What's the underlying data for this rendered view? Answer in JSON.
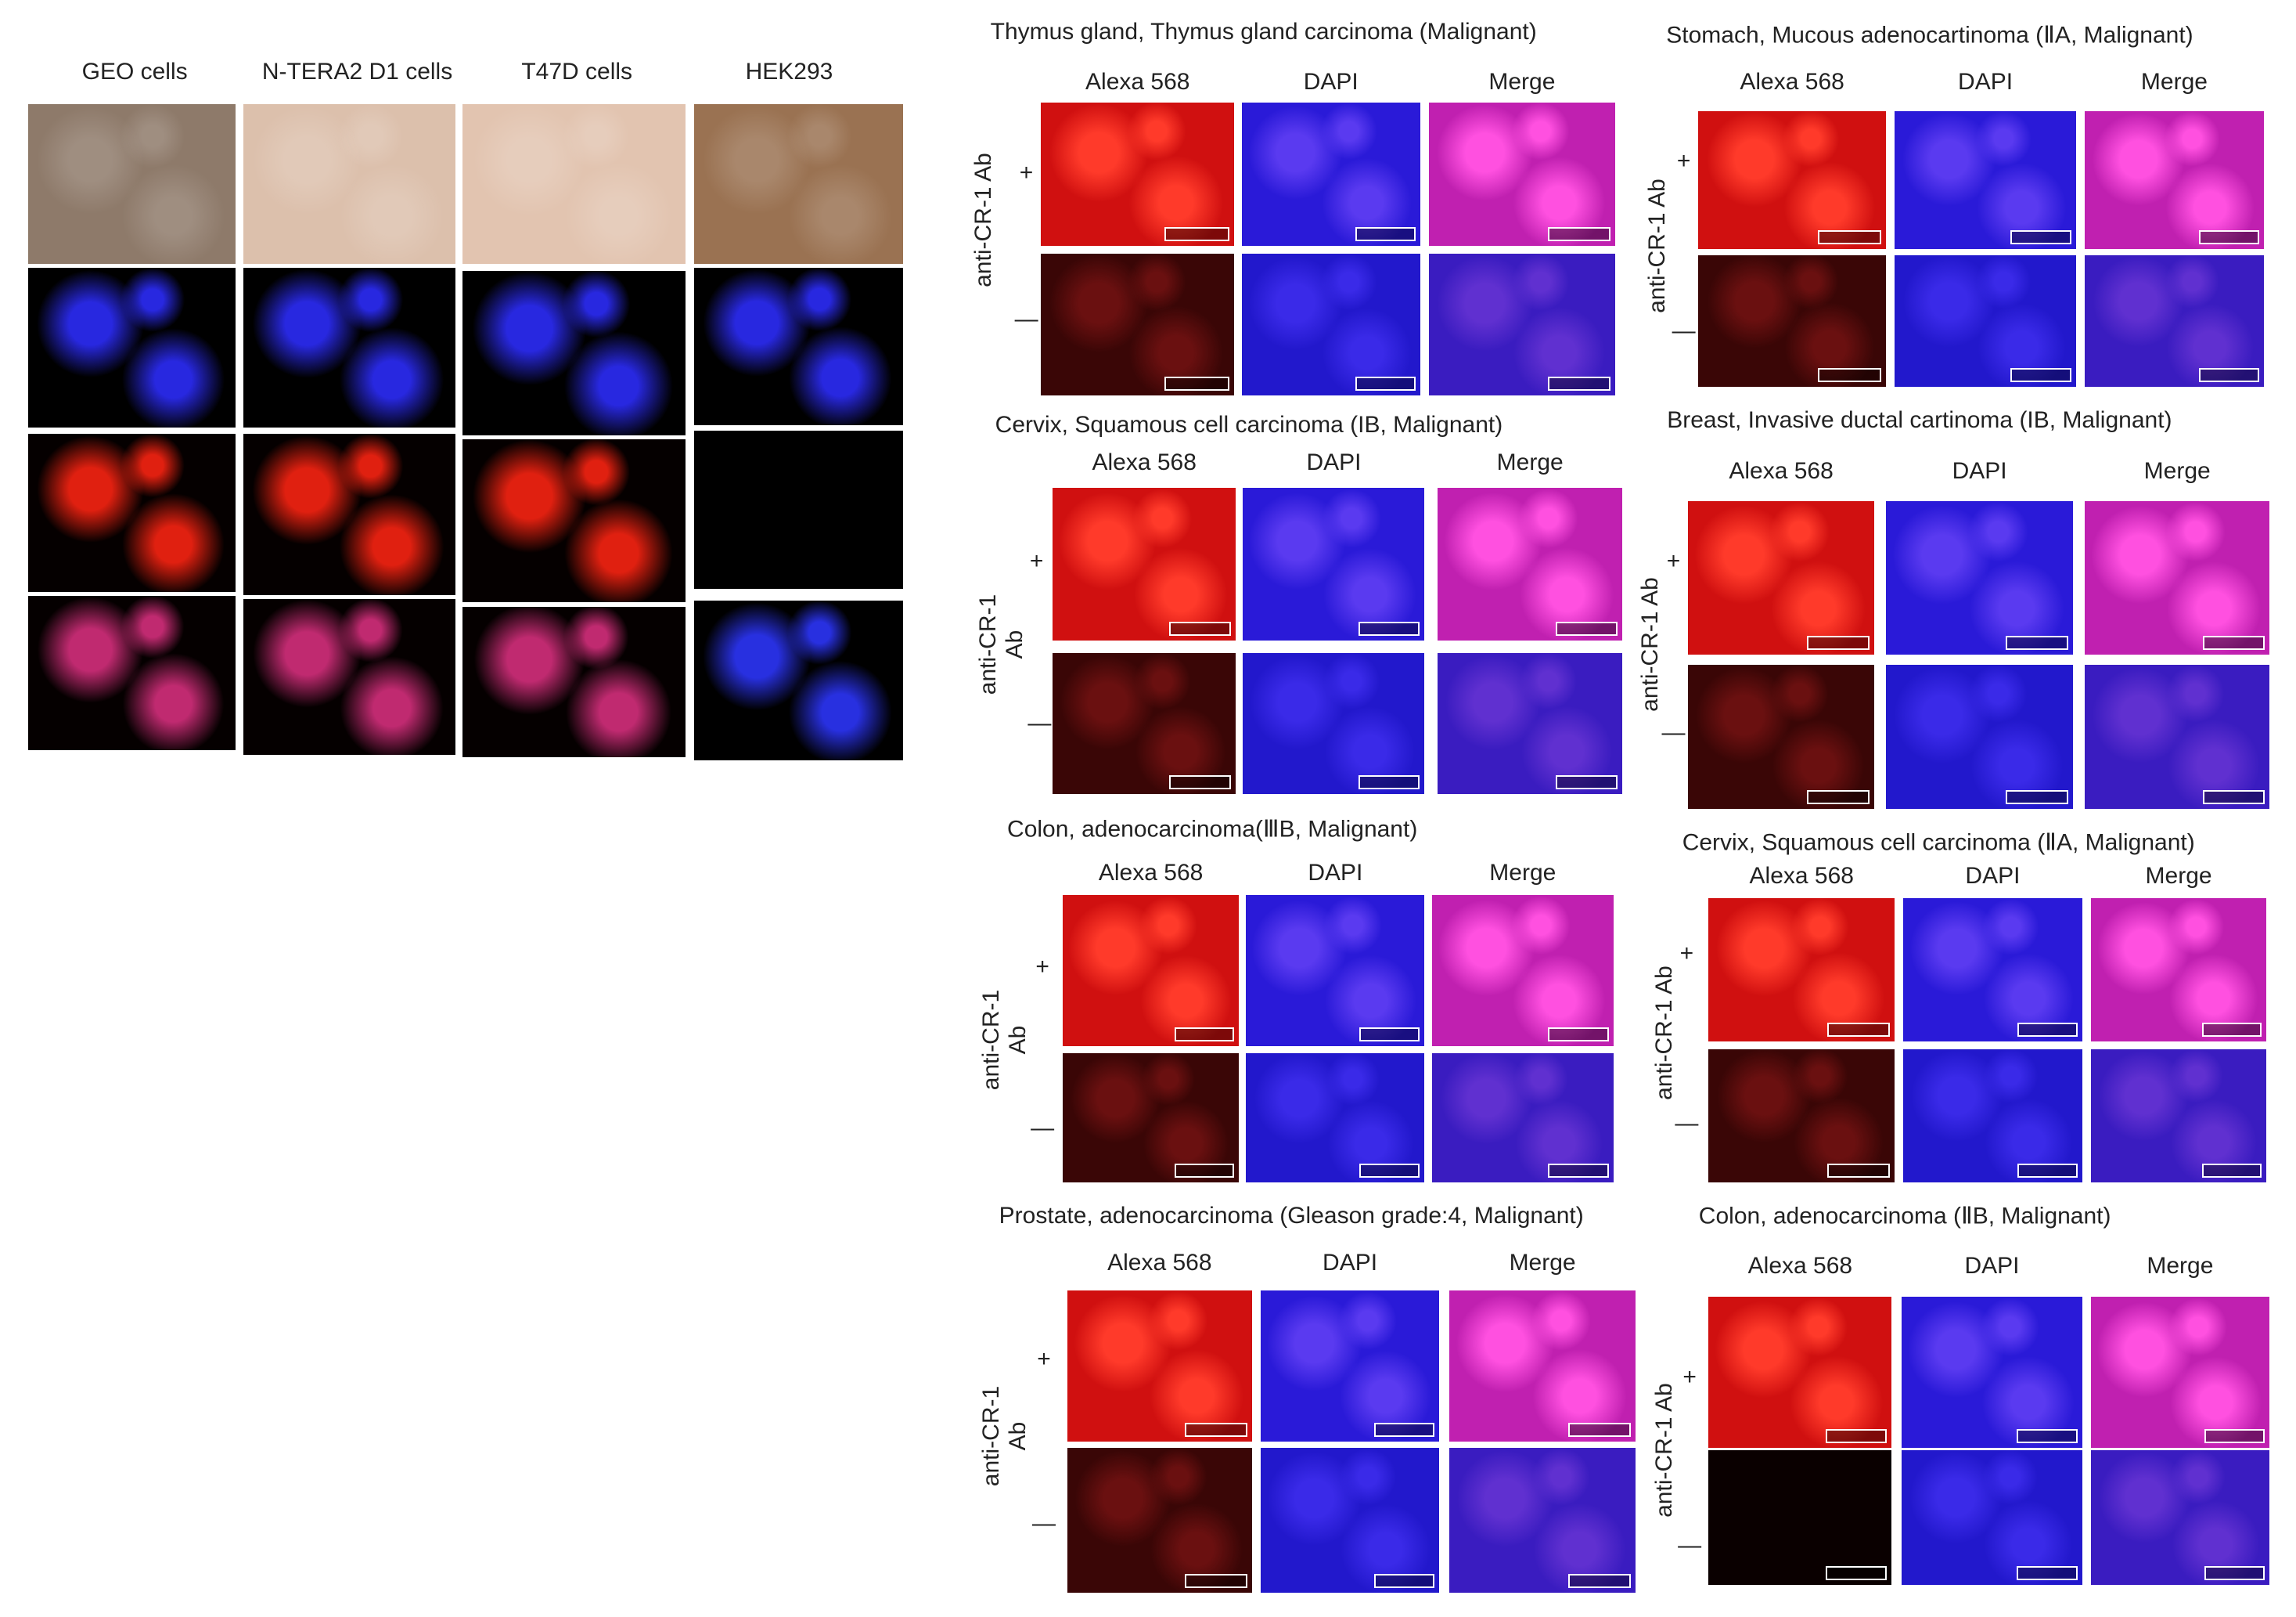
{
  "left_figure": {
    "columns": [
      "GEO cells",
      "N-TERA2 D1 cells",
      "T47D cells",
      "HEK293"
    ]
  },
  "panels": [
    {
      "title": "Thymus gland, Thymus gland carcinoma (Malignant)",
      "channels": [
        "Alexa 568",
        "DAPI",
        "Merge"
      ],
      "ylabel": [
        "anti-CR-1 Ab"
      ],
      "rows": [
        "+",
        "—"
      ]
    },
    {
      "title": "Stomach, Mucous adenocartinoma (ⅡA, Malignant)",
      "channels": [
        "Alexa 568",
        "DAPI",
        "Merge"
      ],
      "ylabel": [
        "anti-CR-1 Ab"
      ],
      "rows": [
        "+",
        "—"
      ]
    },
    {
      "title": "Cervix, Squamous cell carcinoma (IB, Malignant)",
      "channels": [
        "Alexa 568",
        "DAPI",
        "Merge"
      ],
      "ylabel": [
        "anti-CR-1",
        "Ab"
      ],
      "rows": [
        "+",
        "—"
      ]
    },
    {
      "title": "Breast, Invasive ductal cartinoma (IB, Malignant)",
      "channels": [
        "Alexa 568",
        "DAPI",
        "Merge"
      ],
      "ylabel": [
        "anti-CR-1 Ab"
      ],
      "rows": [
        "+",
        "—"
      ]
    },
    {
      "title": "Colon,  adenocarcinoma(ⅢB, Malignant)",
      "channels": [
        "Alexa 568",
        "DAPI",
        "Merge"
      ],
      "ylabel": [
        "anti-CR-1",
        "Ab"
      ],
      "rows": [
        "+",
        "—"
      ]
    },
    {
      "title": "Cervix, Squamous cell carcinoma (ⅡA, Malignant)",
      "channels": [
        "Alexa 568",
        "DAPI",
        "Merge"
      ],
      "ylabel": [
        "anti-CR-1 Ab"
      ],
      "rows": [
        "+",
        "—"
      ]
    },
    {
      "title": "Prostate, adenocarcinoma (Gleason grade:4, Malignant)",
      "channels": [
        "Alexa 568",
        "DAPI",
        "Merge"
      ],
      "ylabel": [
        "anti-CR-1",
        "Ab"
      ],
      "rows": [
        "+",
        "—"
      ]
    },
    {
      "title": "Colon, adenocarcinoma (ⅡB, Malignant)",
      "channels": [
        "Alexa 568",
        "DAPI",
        "Merge"
      ],
      "ylabel": [
        "anti-CR-1 Ab"
      ],
      "rows": [
        "+",
        "—"
      ]
    }
  ]
}
